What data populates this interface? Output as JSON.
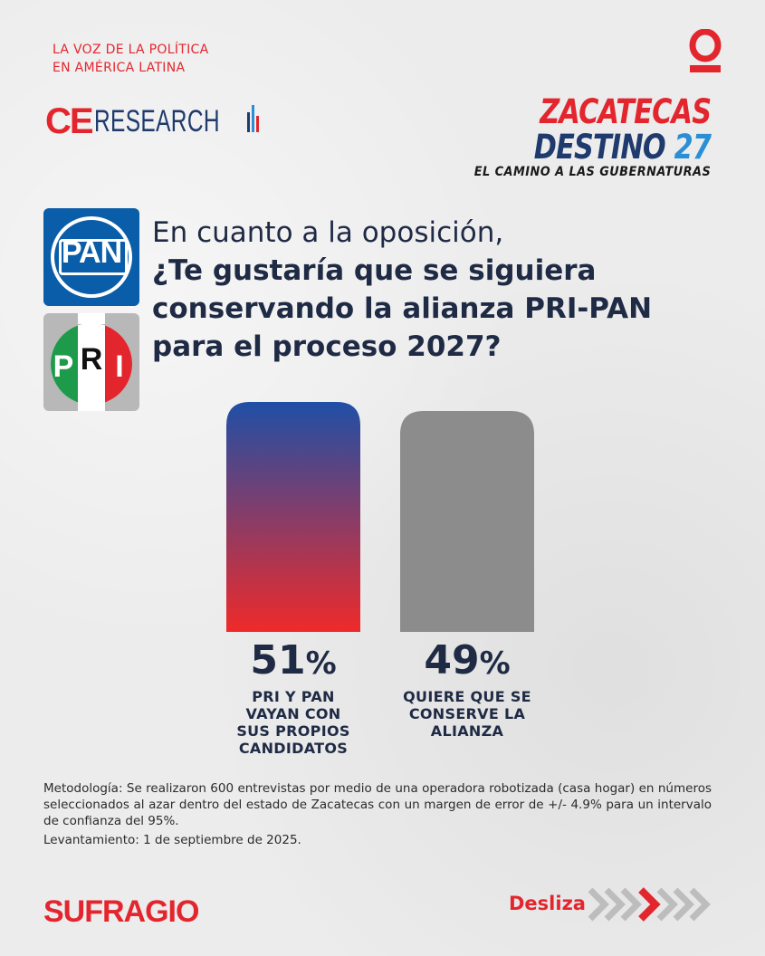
{
  "header": {
    "tagline_line1": "LA VOZ DE LA POLÍTICA",
    "tagline_line2": "EN AMÉRICA LATINA",
    "logo_ce": "CE",
    "logo_research": "RESEARCH",
    "campaign_line1": "ZACATECAS",
    "campaign_destino": "DESTINO",
    "campaign_year": "27",
    "campaign_line3": "EL CAMINO A LAS GUBERNATURAS"
  },
  "party_logos": {
    "pan": "PAN",
    "pri_letters": [
      "P",
      "R",
      "I"
    ]
  },
  "question": {
    "line1": "En cuanto a la oposición,",
    "line2": "¿Te gustaría que se siguiera",
    "line3": "conservando la alianza PRI-PAN",
    "line4": "para el proceso 2027?"
  },
  "chart_data": {
    "type": "bar",
    "categories": [
      "PRI Y PAN VAYAN CON SUS PROPIOS CANDIDATOS",
      "QUIERE QUE SE CONSERVE LA ALIANZA"
    ],
    "values": [
      51,
      49
    ],
    "value_labels": [
      "51",
      "49"
    ],
    "unit": "%",
    "caption_lines": [
      [
        "PRI Y PAN",
        "VAYAN CON",
        "SUS PROPIOS",
        "CANDIDATOS"
      ],
      [
        "QUIERE QUE SE",
        "CONSERVE LA",
        "ALIANZA"
      ]
    ],
    "colors": [
      [
        "#1f4fa6",
        "#ef2a2a"
      ],
      [
        "#8c8c8c",
        "#8c8c8c"
      ]
    ],
    "ylim": [
      0,
      51
    ],
    "title": "",
    "xlabel": "",
    "ylabel": ""
  },
  "methodology": {
    "text": "Metodología: Se realizaron 600 entrevistas por medio de una operadora robotizada (casa hogar) en números seleccionados al azar dentro del estado de Zacatecas con un margen de error de +/- 4.9% para un intervalo de confianza del 95%.",
    "date": "Levantamiento: 1 de septiembre de 2025."
  },
  "footer": {
    "brand": "SUFRAGIO",
    "swipe_label": "Desliza"
  },
  "colors": {
    "accent_red": "#e3262e",
    "navy": "#1f2a44",
    "blue": "#1f3a6d"
  }
}
